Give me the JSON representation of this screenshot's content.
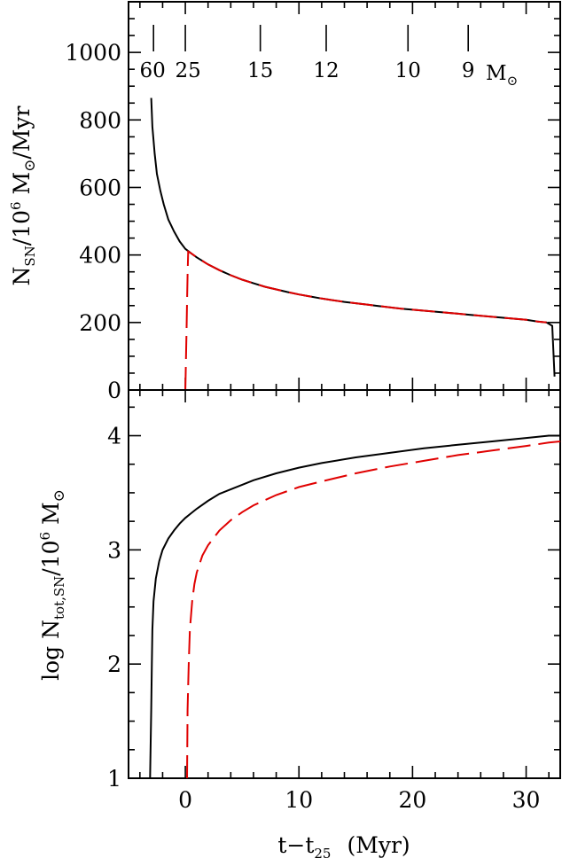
{
  "chart_data": [
    {
      "type": "line",
      "xlabel": "t−t",
      "xlabel_sub": "25",
      "xlabel_unit": "(Myr)",
      "ylabel_main": "N",
      "ylabel_sub": "SN",
      "ylabel_rest": "/10",
      "ylabel_sup": "6",
      "ylabel_tail": " M",
      "ylabel_sun": "⊙",
      "ylabel_end": "/Myr",
      "xlim": [
        -5,
        33
      ],
      "ylim": [
        0,
        1150
      ],
      "x_ticks": [
        0,
        10,
        20,
        30
      ],
      "y_ticks": [
        0,
        200,
        400,
        600,
        800,
        1000
      ],
      "y_tick_labels": [
        "0",
        "200",
        "400",
        "600",
        "800",
        "1000"
      ],
      "top_axis": {
        "labels": [
          "60",
          "25",
          "15",
          "12",
          "10",
          "9"
        ],
        "positions_x": [
          -2.8,
          0,
          6.6,
          12.4,
          19.6,
          24.9
        ],
        "unit": "M",
        "unit_sun": "⊙"
      },
      "series": [
        {
          "style": "solid",
          "color": "#000000",
          "x": [
            -3.0,
            -2.9,
            -2.7,
            -2.5,
            -2.2,
            -1.9,
            -1.5,
            -1.0,
            -0.5,
            0.0,
            0.5,
            1.0,
            2.0,
            3.0,
            4.0,
            5.0,
            6.0,
            7.0,
            8.0,
            9.0,
            10.0,
            11.0,
            12.0,
            13.0,
            14.0,
            15.0,
            16.0,
            17.0,
            18.0,
            19.0,
            20.0,
            21.0,
            22.0,
            23.0,
            24.0,
            25.0,
            26.0,
            27.0,
            28.0,
            29.0,
            30.0,
            31.0,
            31.8,
            32.3,
            32.5
          ],
          "y": [
            865,
            780,
            700,
            640,
            590,
            550,
            505,
            470,
            440,
            418,
            405,
            393,
            372,
            355,
            340,
            327,
            316,
            306,
            298,
            290,
            283,
            277,
            271,
            266,
            261,
            257,
            253,
            249,
            245,
            241,
            238,
            235,
            232,
            229,
            226,
            223,
            220,
            217,
            214,
            211,
            208,
            203,
            200,
            190,
            40
          ]
        },
        {
          "style": "dashed",
          "color": "#e00000",
          "x": [
            0.0,
            0.05,
            0.1,
            0.15,
            0.2,
            0.25,
            0.5,
            1.0,
            2.0,
            3.0,
            4.0,
            5.0,
            6.0,
            7.0,
            8.0,
            9.0,
            10.0,
            11.0,
            12.0,
            13.0,
            14.0,
            15.0,
            16.0,
            17.0,
            18.0,
            19.0,
            20.0,
            21.0,
            22.0,
            23.0,
            24.0,
            25.0,
            26.0,
            27.0,
            28.0,
            29.0,
            30.0,
            31.0,
            31.8
          ],
          "y": [
            0,
            80,
            170,
            260,
            340,
            410,
            405,
            393,
            372,
            355,
            340,
            327,
            316,
            306,
            298,
            290,
            283,
            277,
            271,
            266,
            261,
            257,
            253,
            249,
            245,
            241,
            238,
            235,
            232,
            229,
            226,
            223,
            220,
            217,
            214,
            211,
            208,
            203,
            200
          ]
        }
      ]
    },
    {
      "type": "line",
      "xlabel": "t−t",
      "xlabel_sub": "25",
      "xlabel_unit": "(Myr)",
      "ylabel_main": "log N",
      "ylabel_sub": "tot,SN",
      "ylabel_rest": "/10",
      "ylabel_sup": "6",
      "ylabel_tail": " M",
      "ylabel_sun": "⊙",
      "xlim": [
        -5,
        33
      ],
      "ylim": [
        1,
        4.4
      ],
      "x_ticks": [
        0,
        10,
        20,
        30
      ],
      "x_tick_labels": [
        "0",
        "10",
        "20",
        "30"
      ],
      "y_ticks": [
        1,
        2,
        3,
        4
      ],
      "y_tick_labels": [
        "1",
        "2",
        "3",
        "4"
      ],
      "series": [
        {
          "style": "solid",
          "color": "#000000",
          "x": [
            -3.1,
            -3.0,
            -2.95,
            -2.9,
            -2.8,
            -2.6,
            -2.3,
            -2.0,
            -1.5,
            -1.0,
            -0.5,
            0.0,
            0.5,
            1.0,
            2.0,
            3.0,
            4.0,
            5.0,
            6.0,
            8.0,
            10.0,
            12.0,
            15.0,
            18.0,
            21.0,
            24.0,
            27.0,
            30.0,
            32.0,
            33.0
          ],
          "y": [
            1.0,
            1.6,
            2.0,
            2.3,
            2.55,
            2.75,
            2.9,
            3.0,
            3.1,
            3.17,
            3.23,
            3.28,
            3.32,
            3.36,
            3.43,
            3.49,
            3.53,
            3.57,
            3.61,
            3.67,
            3.72,
            3.76,
            3.81,
            3.85,
            3.89,
            3.92,
            3.95,
            3.98,
            4.0,
            4.0
          ]
        },
        {
          "style": "dashed",
          "color": "#e00000",
          "x": [
            0.15,
            0.2,
            0.3,
            0.4,
            0.6,
            0.8,
            1.0,
            1.5,
            2.0,
            3.0,
            4.0,
            5.0,
            6.0,
            8.0,
            10.0,
            12.0,
            15.0,
            18.0,
            21.0,
            24.0,
            27.0,
            30.0,
            32.0,
            33.0
          ],
          "y": [
            1.0,
            1.6,
            2.0,
            2.3,
            2.55,
            2.7,
            2.8,
            2.95,
            3.04,
            3.17,
            3.26,
            3.33,
            3.39,
            3.48,
            3.55,
            3.6,
            3.67,
            3.73,
            3.78,
            3.83,
            3.87,
            3.91,
            3.94,
            3.95
          ]
        }
      ]
    }
  ]
}
